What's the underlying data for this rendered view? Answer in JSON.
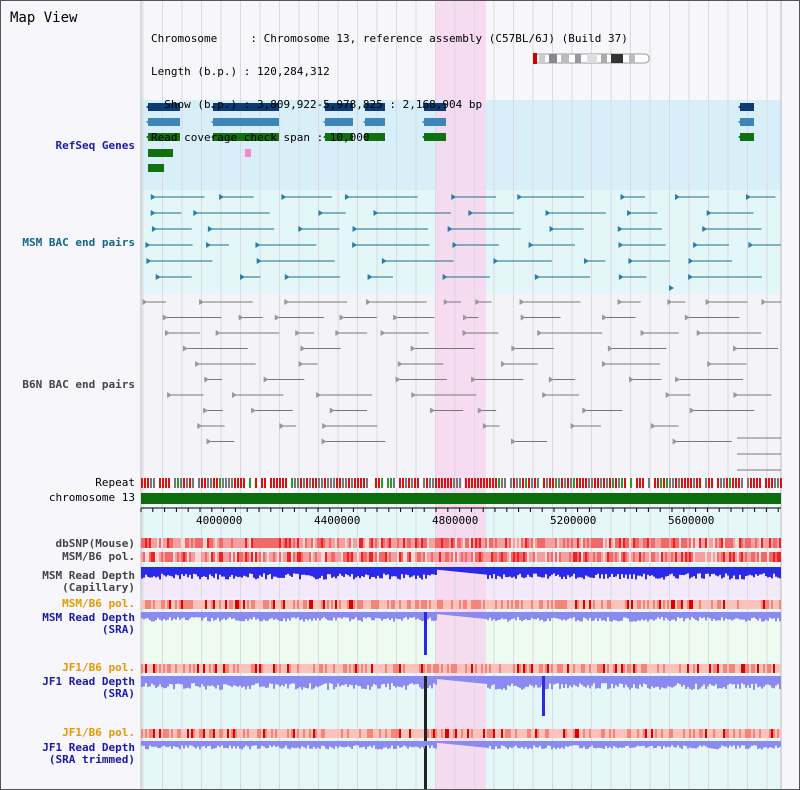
{
  "view": {
    "title": "Map View",
    "info_lines": [
      "Chromosome     : Chromosome 13, reference assembly (C57BL/6J) (Build 37)",
      "Length (b.p.) : 120,284,312",
      "  Show (b.p.) : 3,809,922-5,978,825 : 2,168,904 bp",
      "Read coverage check span : 10,000"
    ]
  },
  "tracks": {
    "refseq": "RefSeq Genes",
    "msm_bac": "MSM BAC end pairs",
    "b6n_bac": "B6N BAC end pairs",
    "repeat": "Repeat",
    "chromosome": "chromosome 13",
    "dbsnp": "dbSNP(Mouse)",
    "msm_b6_pol_1": "MSM/B6 pol.",
    "msm_depth_cap_1": "MSM Read Depth",
    "msm_depth_cap_2": "(Capillary)",
    "msm_b6_pol_2": "MSM/B6 pol.",
    "msm_depth_sra_1": "MSM Read Depth",
    "msm_depth_sra_2": "(SRA)",
    "jf1_b6_pol_1": "JF1/B6 pol.",
    "jf1_depth_sra_1": "JF1 Read Depth",
    "jf1_depth_sra_2": "(SRA)",
    "jf1_b6_pol_2": "JF1/B6 pol.",
    "jf1_depth_trim_1": "JF1 Read Depth",
    "jf1_depth_trim_2": "(SRA trimmed)"
  },
  "axis": {
    "ticks": [
      "4000000",
      "4400000",
      "4800000",
      "5200000",
      "5600000"
    ]
  },
  "colors": {
    "highlight": "#f7d6ef",
    "refseq_bg": "#d8eef9",
    "msm_bg": "#e3f6f8",
    "gene_navy": "#0d3b73",
    "gene_blue": "#3f86b8",
    "gene_green": "#137010",
    "chrom_green": "#0b6e0b",
    "depth_blue": "#2a2ae6",
    "depth_light": "#8a8af0"
  }
}
